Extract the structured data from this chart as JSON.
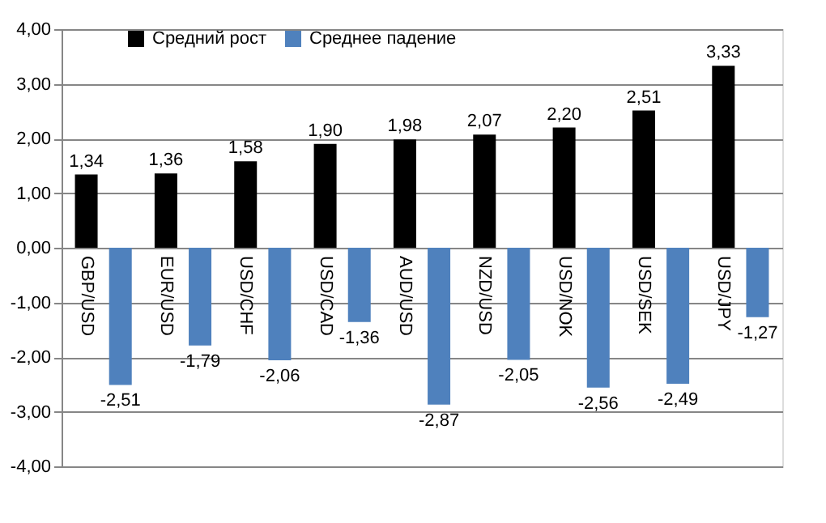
{
  "chart_data": {
    "type": "bar",
    "categories": [
      "GBP/USD",
      "EUR/USD",
      "USD/CHF",
      "USD/CAD",
      "AUD/USD",
      "NZD/USD",
      "USD/NOK",
      "USD/SEK",
      "USD/JPY"
    ],
    "series": [
      {
        "name": "Средний рост",
        "color": "#000000",
        "values": [
          1.34,
          1.36,
          1.58,
          1.9,
          1.98,
          2.07,
          2.2,
          2.51,
          3.33
        ],
        "value_labels": [
          "1,34",
          "1,36",
          "1,58",
          "1,90",
          "1,98",
          "2,07",
          "2,20",
          "2,51",
          "3,33"
        ]
      },
      {
        "name": "Среднее падение",
        "color": "#4f81bd",
        "values": [
          -2.51,
          -1.79,
          -2.06,
          -1.36,
          -2.87,
          -2.05,
          -2.56,
          -2.49,
          -1.27
        ],
        "value_labels": [
          "-2,51",
          "-1,79",
          "-2,06",
          "-1,36",
          "-2,87",
          "-2,05",
          "-2,56",
          "-2,49",
          "-1,27"
        ]
      }
    ],
    "ylim": [
      -4,
      4
    ],
    "yticks": [
      {
        "value": -4,
        "label": "-4,00"
      },
      {
        "value": -3,
        "label": "-3,00"
      },
      {
        "value": -2,
        "label": "-2,00"
      },
      {
        "value": -1,
        "label": "-1,00"
      },
      {
        "value": 0,
        "label": "0,00"
      },
      {
        "value": 1,
        "label": "1,00"
      },
      {
        "value": 2,
        "label": "2,00"
      },
      {
        "value": 3,
        "label": "3,00"
      },
      {
        "value": 4,
        "label": "4,00"
      }
    ],
    "grid": "y",
    "legend": "top left"
  }
}
